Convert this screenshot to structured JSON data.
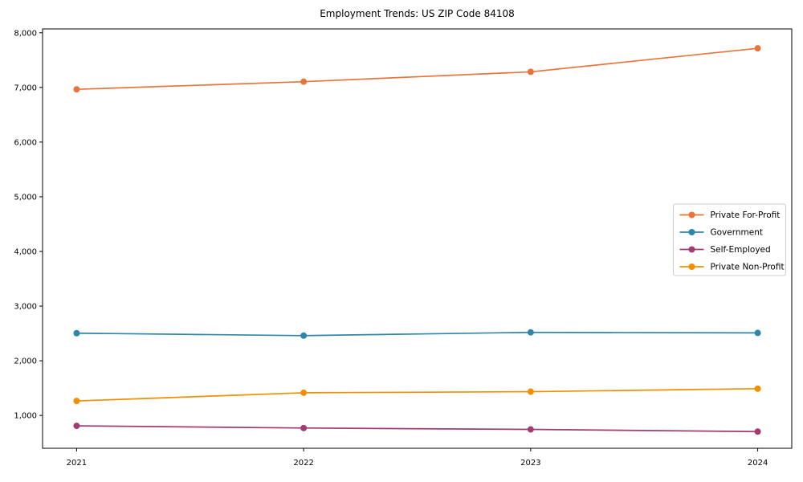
{
  "page": {
    "background_color": "#ffffff",
    "text_color": "#000000"
  },
  "chart_data": {
    "type": "line",
    "title": "Employment Trends: US ZIP Code 84108",
    "xlabel": "",
    "ylabel": "",
    "x": [
      2021,
      2022,
      2023,
      2024
    ],
    "x_tick_labels": [
      "2021",
      "2022",
      "2023",
      "2024"
    ],
    "y_ticks": [
      1000,
      2000,
      3000,
      4000,
      5000,
      6000,
      7000,
      8000
    ],
    "y_tick_labels": [
      "1,000",
      "2,000",
      "3,000",
      "4,000",
      "5,000",
      "6,000",
      "7,000",
      "8,000"
    ],
    "xlim": [
      2020.85,
      2024.15
    ],
    "ylim": [
      400,
      8070
    ],
    "grid": false,
    "legend_position": "center-right",
    "axis_color": "#000000",
    "tick_label_color": "#000000",
    "legend_border_color": "#cccccc",
    "legend_background": "#ffffff",
    "series": [
      {
        "name": "Private For-Profit",
        "color": "#E8743B",
        "values": [
          6965,
          7105,
          7285,
          7715
        ]
      },
      {
        "name": "Government",
        "color": "#2E86AB",
        "values": [
          2505,
          2460,
          2520,
          2510
        ]
      },
      {
        "name": "Self-Employed",
        "color": "#A23B72",
        "values": [
          810,
          770,
          745,
          705
        ]
      },
      {
        "name": "Private Non-Profit",
        "color": "#F18F01",
        "values": [
          1265,
          1415,
          1435,
          1490
        ]
      }
    ]
  }
}
